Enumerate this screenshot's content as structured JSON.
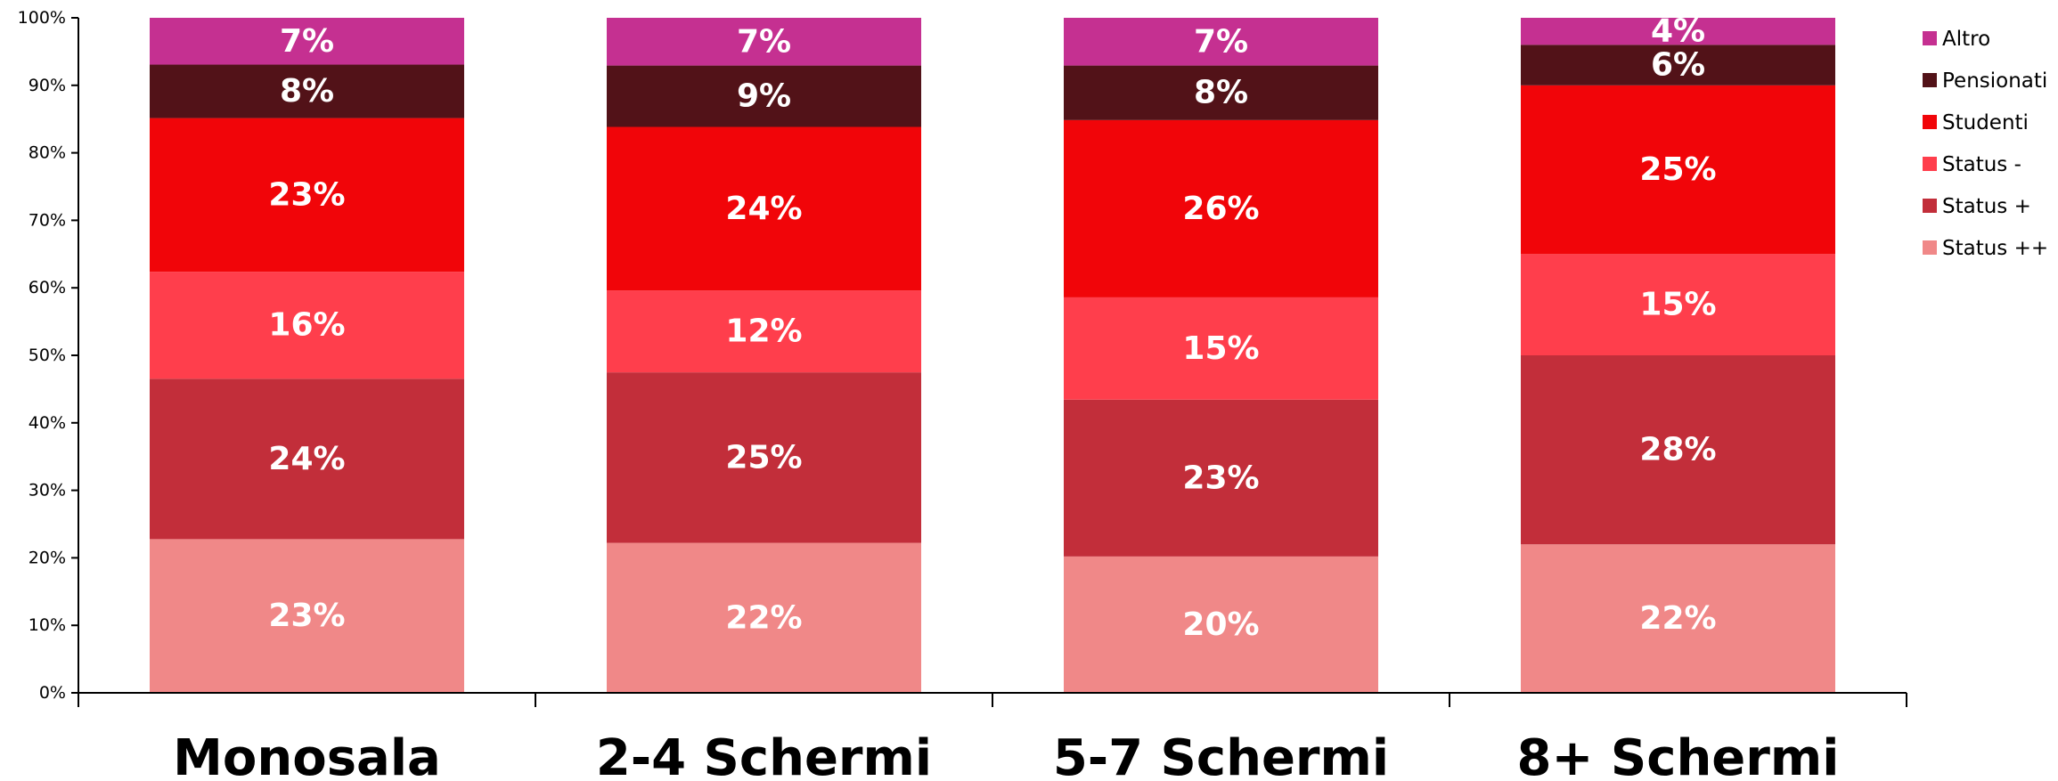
{
  "chart_data": {
    "type": "bar",
    "stacked": true,
    "percent_stacked": true,
    "categories": [
      "Monosala",
      "2-4 Schermi",
      "5-7 Schermi",
      "8+ Schermi"
    ],
    "series": [
      {
        "name": "Status ++",
        "color": "#F08888",
        "values": [
          23,
          22,
          20,
          22
        ],
        "labels": [
          "23%",
          "22%",
          "20%",
          "22%"
        ]
      },
      {
        "name": "Status +",
        "color": "#C22E3A",
        "values": [
          24,
          25,
          23,
          28
        ],
        "labels": [
          "24%",
          "25%",
          "23%",
          "28%"
        ]
      },
      {
        "name": "Status -",
        "color": "#FF3E4C",
        "values": [
          16,
          12,
          15,
          15
        ],
        "labels": [
          "16%",
          "12%",
          "15%",
          "15%"
        ]
      },
      {
        "name": "Studenti",
        "color": "#F10509",
        "values": [
          23,
          24,
          26,
          25
        ],
        "labels": [
          "23%",
          "24%",
          "26%",
          "25%"
        ]
      },
      {
        "name": "Pensionati",
        "color": "#521218",
        "values": [
          8,
          9,
          8,
          6
        ],
        "labels": [
          "8%",
          "9%",
          "8%",
          "6%"
        ]
      },
      {
        "name": "Altro",
        "color": "#C53091",
        "values": [
          7,
          7,
          7,
          4
        ],
        "labels": [
          "7%",
          "7%",
          "7%",
          "4%"
        ]
      }
    ],
    "ylim": [
      0,
      100
    ],
    "yticks": [
      "0%",
      "10%",
      "20%",
      "30%",
      "40%",
      "50%",
      "60%",
      "70%",
      "80%",
      "90%",
      "100%"
    ],
    "grid": false,
    "legend": "right",
    "legend_order": [
      "Altro",
      "Pensionati",
      "Studenti",
      "Status -",
      "Status +",
      "Status ++"
    ],
    "title": "",
    "xlabel": "",
    "ylabel": ""
  }
}
